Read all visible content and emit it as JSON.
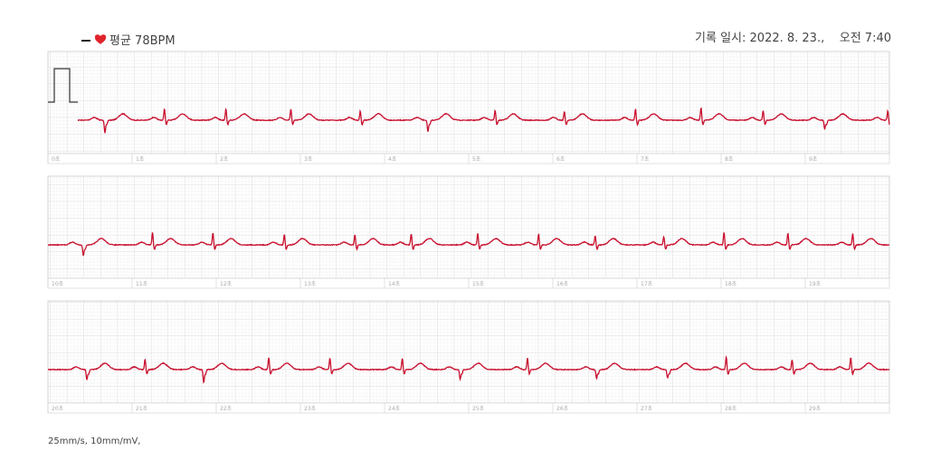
{
  "header": {
    "legend": "평균 78BPM",
    "recorded": "기록 일시: 2022. 8. 23.,    오전 7:40"
  },
  "strips": [
    {
      "labels": [
        "0초",
        "1초",
        "2초",
        "3초",
        "4초",
        "5초",
        "6초",
        "7초",
        "8초",
        "9초"
      ]
    },
    {
      "labels": [
        "10초",
        "11초",
        "12초",
        "13초",
        "14초",
        "15초",
        "16초",
        "17초",
        "18초",
        "19초"
      ]
    },
    {
      "labels": [
        "20초",
        "21초",
        "22초",
        "23초",
        "24초",
        "25초",
        "26초",
        "27초",
        "28초",
        "29초"
      ]
    }
  ],
  "footer": "25mm/s, 10mm/mV,"
}
